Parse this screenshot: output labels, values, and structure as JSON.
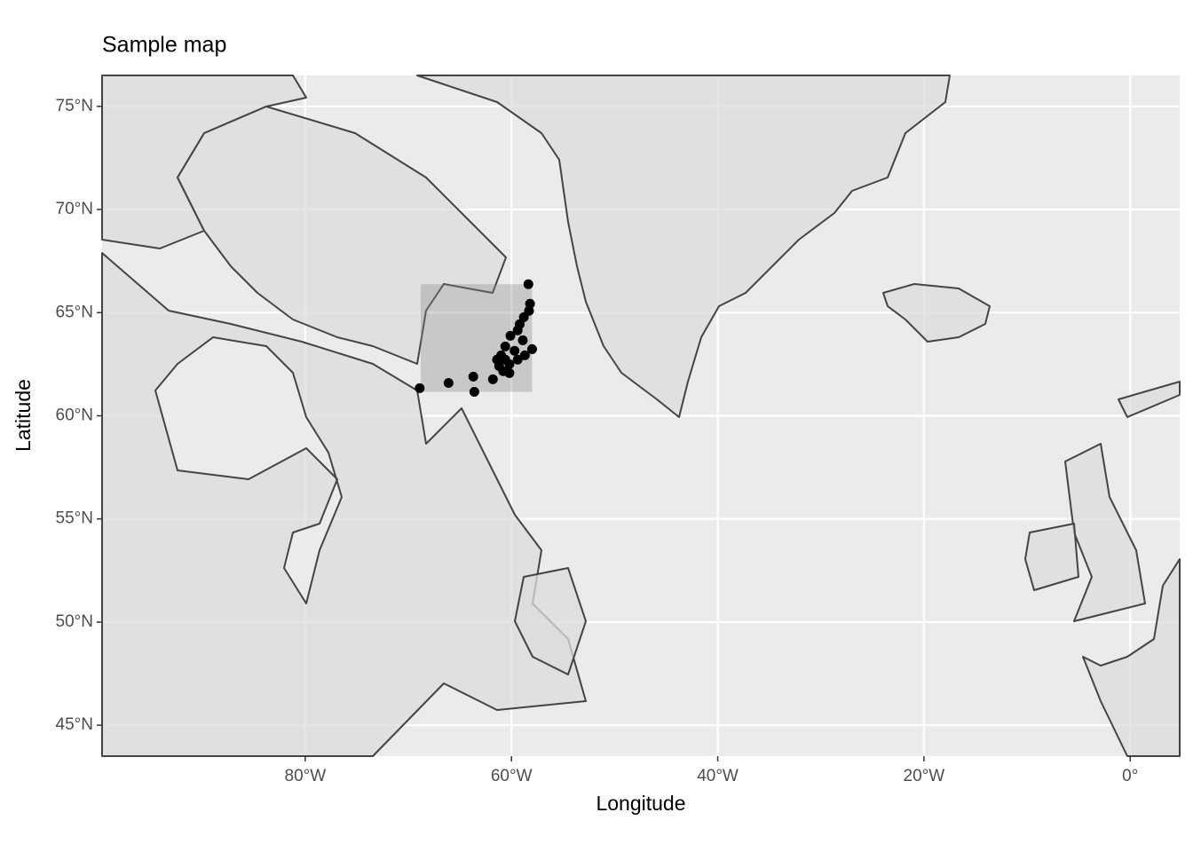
{
  "chart_data": {
    "type": "scatter",
    "title": "Sample map",
    "xlabel": "Longitude",
    "ylabel": "Latitude",
    "xlim": [
      -99.7,
      4.8
    ],
    "ylim": [
      43.5,
      76.5
    ],
    "xticks": [
      {
        "value": -80,
        "label": "80°W"
      },
      {
        "value": -60,
        "label": "60°W"
      },
      {
        "value": -40,
        "label": "40°W"
      },
      {
        "value": -20,
        "label": "20°W"
      },
      {
        "value": 0,
        "label": "0°"
      }
    ],
    "yticks": [
      {
        "value": 45,
        "label": "45°N"
      },
      {
        "value": 50,
        "label": "50°N"
      },
      {
        "value": 55,
        "label": "55°N"
      },
      {
        "value": 60,
        "label": "60°N"
      },
      {
        "value": 65,
        "label": "65°N"
      },
      {
        "value": 70,
        "label": "70°N"
      },
      {
        "value": 75,
        "label": "75°N"
      }
    ],
    "grid": true,
    "color": "#000000",
    "box": {
      "xmin": -68.8,
      "xmax": -58.0,
      "ymin": 61.16,
      "ymax": 66.38,
      "color": "#888888"
    },
    "x": [
      -58.36,
      -58.2,
      -58.3,
      -58.8,
      -59.2,
      -59.4,
      -60.1,
      -58.9,
      -58.0,
      -60.6,
      -59.7,
      -61.0,
      -61.4,
      -60.6,
      -60.2,
      -61.2,
      -59.4,
      -60.2,
      -61.8,
      -63.7,
      -63.6,
      -66.1,
      -68.9,
      -60.8,
      -58.7
    ],
    "y": [
      66.38,
      65.43,
      65.09,
      64.78,
      64.44,
      64.14,
      63.88,
      63.66,
      63.23,
      63.36,
      63.15,
      62.93,
      62.72,
      62.72,
      62.5,
      62.41,
      62.72,
      62.07,
      61.77,
      61.9,
      61.16,
      61.59,
      61.34,
      62.16,
      62.93
    ]
  }
}
